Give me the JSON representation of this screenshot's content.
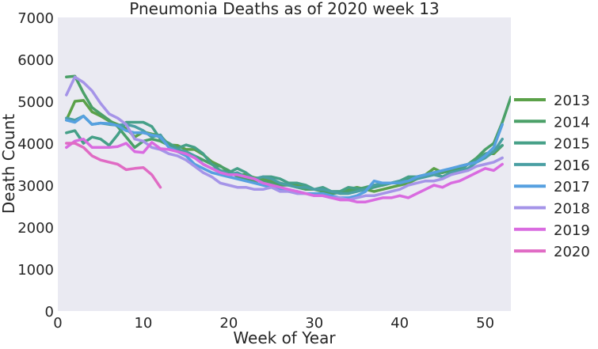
{
  "chart_data": {
    "type": "line",
    "title": "Pneumonia Deaths as of 2020 week 13",
    "xlabel": "Week of Year",
    "ylabel": "Death Count",
    "xlim": [
      0,
      53
    ],
    "ylim": [
      0,
      7000
    ],
    "x_ticks": [
      0,
      10,
      20,
      30,
      40,
      50
    ],
    "y_ticks": [
      0,
      1000,
      2000,
      3000,
      4000,
      5000,
      6000,
      7000
    ],
    "grid": false,
    "background": "#eaeaf2",
    "legend_position": "right",
    "series": [
      {
        "name": "2013",
        "color": "#5ba149",
        "weeks": [
          1,
          2,
          3,
          4,
          5,
          6,
          7,
          8,
          9,
          10,
          11,
          12,
          13,
          14,
          15,
          16,
          17,
          18,
          19,
          20,
          21,
          22,
          23,
          24,
          25,
          26,
          27,
          28,
          29,
          30,
          31,
          32,
          33,
          34,
          35,
          36,
          37,
          38,
          39,
          40,
          41,
          42,
          43,
          44,
          45,
          46,
          47,
          48,
          49,
          50,
          51,
          52
        ],
        "values": [
          4550,
          5000,
          5020,
          4750,
          4650,
          4530,
          4450,
          4350,
          4150,
          4270,
          4220,
          4180,
          3960,
          3950,
          3850,
          3850,
          3730,
          3560,
          3460,
          3320,
          3250,
          3250,
          3180,
          3150,
          3100,
          3050,
          3000,
          3000,
          2950,
          2900,
          2900,
          2830,
          2830,
          2900,
          2950,
          2900,
          2850,
          2900,
          2950,
          3000,
          3050,
          3150,
          3250,
          3400,
          3300,
          3350,
          3450,
          3500,
          3600,
          3750,
          3750,
          3950
        ]
      },
      {
        "name": "2014",
        "color": "#4ba068",
        "weeks": [
          1,
          2,
          3,
          4,
          5,
          6,
          7,
          8,
          9,
          10,
          11,
          12,
          13,
          14,
          15,
          16,
          17,
          18,
          19,
          20,
          21,
          22,
          23,
          24,
          25,
          26,
          27,
          28,
          29,
          30,
          31,
          32,
          33,
          34,
          35,
          36,
          37,
          38,
          39,
          40,
          41,
          42,
          43,
          44,
          45,
          46,
          47,
          48,
          49,
          50,
          51,
          52,
          53
        ],
        "values": [
          5580,
          5600,
          5200,
          4850,
          4700,
          4550,
          4400,
          4150,
          3900,
          4050,
          4100,
          4050,
          3950,
          3800,
          3750,
          3700,
          3600,
          3500,
          3450,
          3350,
          3200,
          3150,
          3100,
          3100,
          3050,
          3000,
          3000,
          2950,
          2900,
          2900,
          2850,
          2800,
          2820,
          2850,
          2900,
          2950,
          3000,
          3000,
          3050,
          3100,
          3150,
          3200,
          3250,
          3300,
          3300,
          3350,
          3400,
          3500,
          3650,
          3850,
          4000,
          4500,
          5100
        ]
      },
      {
        "name": "2015",
        "color": "#46a088",
        "weeks": [
          1,
          2,
          3,
          4,
          5,
          6,
          7,
          8,
          9,
          10,
          11,
          12,
          13,
          14,
          15,
          16,
          17,
          18,
          19,
          20,
          21,
          22,
          23,
          24,
          25,
          26,
          27,
          28,
          29,
          30,
          31,
          32,
          33,
          34,
          35,
          36,
          37,
          38,
          39,
          40,
          41,
          42,
          43,
          44,
          45,
          46,
          47,
          48,
          49,
          50,
          51,
          52
        ],
        "values": [
          4250,
          4300,
          4000,
          4150,
          4100,
          3950,
          4200,
          4500,
          4500,
          4500,
          4400,
          4100,
          4000,
          3880,
          3960,
          3900,
          3750,
          3500,
          3350,
          3300,
          3400,
          3300,
          3150,
          3200,
          3200,
          3150,
          3050,
          3050,
          3000,
          2900,
          2950,
          2850,
          2850,
          2950,
          2920,
          2900,
          2950,
          3000,
          3050,
          3100,
          3200,
          3200,
          3250,
          3300,
          3200,
          3300,
          3350,
          3500,
          3600,
          3750,
          3800,
          3950
        ]
      },
      {
        "name": "2016",
        "color": "#4a9fa3",
        "weeks": [
          1,
          2,
          3,
          4,
          5,
          6,
          7,
          8,
          9,
          10,
          11,
          12,
          13,
          14,
          15,
          16,
          17,
          18,
          19,
          20,
          21,
          22,
          23,
          24,
          25,
          26,
          27,
          28,
          29,
          30,
          31,
          32,
          33,
          34,
          35,
          36,
          37,
          38,
          39,
          40,
          41,
          42,
          43,
          44,
          45,
          46,
          47,
          48,
          49,
          50,
          51,
          52
        ],
        "values": [
          4600,
          4550,
          4650,
          4450,
          4480,
          4450,
          4430,
          4450,
          4400,
          4300,
          4150,
          4200,
          3900,
          3850,
          3800,
          3700,
          3500,
          3400,
          3350,
          3250,
          3300,
          3200,
          3150,
          3200,
          3150,
          3050,
          3000,
          2950,
          2950,
          2900,
          2900,
          2850,
          2800,
          2800,
          2850,
          2900,
          3000,
          3050,
          3050,
          3100,
          3100,
          3150,
          3200,
          3250,
          3200,
          3300,
          3350,
          3400,
          3550,
          3650,
          3800,
          4100
        ]
      },
      {
        "name": "2017",
        "color": "#56a0e0",
        "weeks": [
          1,
          2,
          3,
          4,
          5,
          6,
          7,
          8,
          9,
          10,
          11,
          12,
          13,
          14,
          15,
          16,
          17,
          18,
          19,
          20,
          21,
          22,
          23,
          24,
          25,
          26,
          27,
          28,
          29,
          30,
          31,
          32,
          33,
          34,
          35,
          36,
          37,
          38,
          39,
          40,
          41,
          42,
          43,
          44,
          45,
          46,
          47,
          48,
          49,
          50,
          51,
          52
        ],
        "values": [
          4550,
          4500,
          4650,
          4450,
          4480,
          4470,
          4420,
          4300,
          4250,
          4250,
          4200,
          4150,
          3900,
          3800,
          3700,
          3500,
          3400,
          3300,
          3250,
          3200,
          3150,
          3100,
          3050,
          3000,
          2950,
          2900,
          2850,
          2850,
          2800,
          2800,
          2800,
          2750,
          2700,
          2700,
          2750,
          2850,
          3100,
          3050,
          3050,
          3050,
          3100,
          3200,
          3250,
          3300,
          3350,
          3400,
          3450,
          3500,
          3550,
          3700,
          3900,
          4450
        ]
      },
      {
        "name": "2018",
        "color": "#a594e8",
        "weeks": [
          1,
          2,
          3,
          4,
          5,
          6,
          7,
          8,
          9,
          10,
          11,
          12,
          13,
          14,
          15,
          16,
          17,
          18,
          19,
          20,
          21,
          22,
          23,
          24,
          25,
          26,
          27,
          28,
          29,
          30,
          31,
          32,
          33,
          34,
          35,
          36,
          37,
          38,
          39,
          40,
          41,
          42,
          43,
          44,
          45,
          46,
          47,
          48,
          49,
          50,
          51,
          52
        ],
        "values": [
          5150,
          5580,
          5450,
          5250,
          4950,
          4700,
          4600,
          4450,
          4100,
          4050,
          3900,
          3850,
          3750,
          3700,
          3600,
          3450,
          3300,
          3200,
          3050,
          3000,
          2950,
          2950,
          2900,
          2900,
          2950,
          2850,
          2850,
          2800,
          2800,
          2750,
          2750,
          2700,
          2700,
          2650,
          2700,
          2750,
          2750,
          2800,
          2850,
          2900,
          3000,
          3050,
          3100,
          3100,
          3150,
          3250,
          3300,
          3350,
          3450,
          3500,
          3550,
          3650
        ]
      },
      {
        "name": "2019",
        "color": "#d96be0",
        "weeks": [
          1,
          2,
          3,
          4,
          5,
          6,
          7,
          8,
          9,
          10,
          11,
          12,
          13,
          14,
          15,
          16,
          17,
          18,
          19,
          20,
          21,
          22,
          23,
          24,
          25,
          26,
          27,
          28,
          29,
          30,
          31,
          32,
          33,
          34,
          35,
          36,
          37,
          38,
          39,
          40,
          41,
          42,
          43,
          44,
          45,
          46,
          47,
          48,
          49,
          50,
          51,
          52
        ],
        "values": [
          3900,
          4050,
          4100,
          3900,
          3900,
          3900,
          3920,
          4000,
          3800,
          3780,
          4020,
          3870,
          3850,
          3800,
          3750,
          3650,
          3500,
          3400,
          3300,
          3250,
          3250,
          3200,
          3150,
          3050,
          3000,
          2950,
          2900,
          2850,
          2800,
          2750,
          2750,
          2700,
          2650,
          2650,
          2600,
          2600,
          2650,
          2700,
          2700,
          2750,
          2700,
          2800,
          2900,
          3000,
          2950,
          3050,
          3100,
          3200,
          3300,
          3400,
          3350,
          3500
        ]
      },
      {
        "name": "2020",
        "color": "#e06bc4",
        "weeks": [
          1,
          2,
          3,
          4,
          5,
          6,
          7,
          8,
          9,
          10,
          11,
          12
        ],
        "values": [
          4000,
          4000,
          3900,
          3700,
          3600,
          3550,
          3500,
          3370,
          3400,
          3420,
          3250,
          2950
        ]
      }
    ]
  }
}
